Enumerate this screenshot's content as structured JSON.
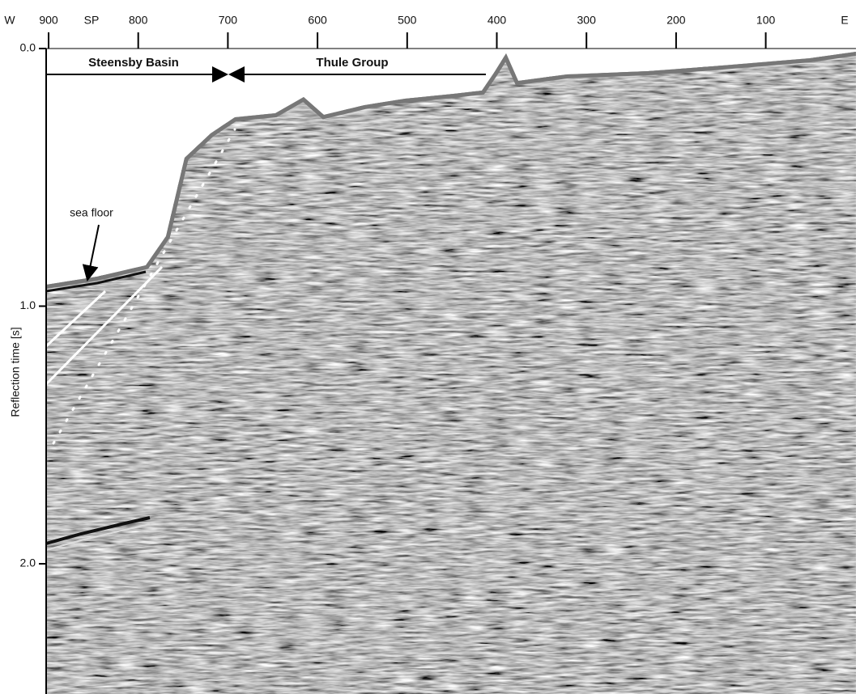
{
  "axes": {
    "top": {
      "left_label": "W",
      "sp_label": "SP",
      "right_label": "E",
      "ticks": [
        "900",
        "800",
        "700",
        "600",
        "500",
        "400",
        "300",
        "200",
        "100"
      ]
    },
    "left": {
      "title": "Reflection time [s]",
      "ticks": [
        "0.0",
        "1.0",
        "2.0"
      ]
    }
  },
  "annotations": {
    "steensby": "Steensby Basin",
    "thule": "Thule Group",
    "sea_floor": "sea floor"
  }
}
